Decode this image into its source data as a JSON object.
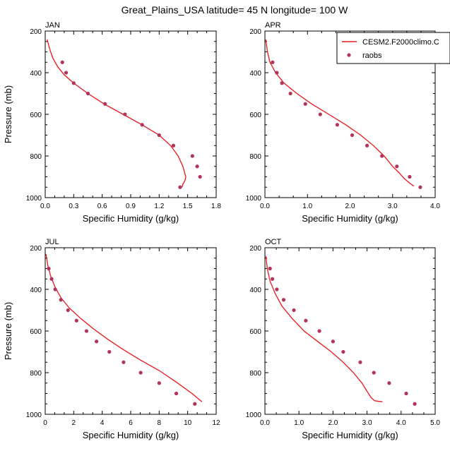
{
  "title": "Great_Plains_USA  latitude= 45 N longitude= 100 W",
  "colors": {
    "model_line": "#e8161b",
    "obs_marker": "#b2345b"
  },
  "legend": {
    "placement": "top-right of APR panel",
    "entries": [
      {
        "label": "CESM2.F2000climo.C",
        "kind": "line"
      },
      {
        "label": "raobs",
        "kind": "marker"
      }
    ]
  },
  "chart_data": [
    {
      "type": "line",
      "panel": "JAN",
      "title": "JAN",
      "xlabel": "Specific Humidity (g/kg)",
      "ylabel": "Pressure (mb)",
      "xlim": [
        0,
        1.8
      ],
      "ylim": [
        1000,
        200
      ],
      "y_reversed": true,
      "xticks": [
        0.0,
        0.3,
        0.6,
        0.9,
        1.2,
        1.5,
        1.8
      ],
      "xtick_labels": [
        "0.0",
        "0.3",
        "0.6",
        "0.9",
        "1.2",
        "1.5",
        "1.8"
      ],
      "yticks": [
        200,
        400,
        600,
        800,
        1000
      ],
      "ytick_labels": [
        "200",
        "400",
        "600",
        "800",
        "1000"
      ],
      "series": [
        {
          "kind": "line",
          "x": [
            0.02,
            0.05,
            0.08,
            0.13,
            0.2,
            0.3,
            0.45,
            0.62,
            0.82,
            1.02,
            1.2,
            1.32,
            1.4,
            1.45,
            1.48,
            1.47,
            1.45,
            1.44
          ],
          "y": [
            240,
            290,
            330,
            370,
            410,
            450,
            500,
            550,
            600,
            650,
            700,
            750,
            800,
            850,
            900,
            920,
            935,
            950
          ]
        },
        {
          "kind": "scatter",
          "x": [
            0.18,
            0.22,
            0.3,
            0.45,
            0.63,
            0.84,
            1.02,
            1.2,
            1.35,
            1.55,
            1.6,
            1.63,
            1.42
          ],
          "y": [
            350,
            400,
            450,
            500,
            550,
            600,
            650,
            700,
            750,
            800,
            850,
            900,
            950
          ]
        }
      ]
    },
    {
      "type": "line",
      "panel": "APR",
      "title": "APR",
      "xlabel": "Specific Humidity (g/kg)",
      "ylabel": "",
      "xlim": [
        0,
        4.0
      ],
      "ylim": [
        1000,
        200
      ],
      "y_reversed": true,
      "xticks": [
        0.0,
        1.0,
        2.0,
        3.0,
        4.0
      ],
      "xtick_labels": [
        "0.0",
        "1.0",
        "2.0",
        "3.0",
        "4.0"
      ],
      "yticks": [
        200,
        400,
        600,
        800,
        1000
      ],
      "ytick_labels": [
        "200",
        "400",
        "600",
        "800",
        "1000"
      ],
      "series": [
        {
          "name": "CESM2.F2000climo.C",
          "kind": "line",
          "x": [
            0.02,
            0.06,
            0.12,
            0.25,
            0.45,
            0.75,
            1.1,
            1.5,
            1.9,
            2.25,
            2.55,
            2.8,
            3.0,
            3.15,
            3.28,
            3.4,
            3.5
          ],
          "y": [
            240,
            300,
            350,
            400,
            450,
            500,
            550,
            600,
            650,
            700,
            750,
            800,
            850,
            880,
            910,
            930,
            945
          ]
        },
        {
          "name": "raobs",
          "kind": "scatter",
          "x": [
            0.18,
            0.28,
            0.4,
            0.6,
            0.95,
            1.3,
            1.7,
            2.05,
            2.4,
            2.75,
            3.1,
            3.4,
            3.65
          ],
          "y": [
            350,
            400,
            450,
            500,
            550,
            600,
            650,
            700,
            750,
            800,
            850,
            900,
            950
          ]
        }
      ]
    },
    {
      "type": "line",
      "panel": "JUL",
      "title": "JUL",
      "xlabel": "Specific Humidity (g/kg)",
      "ylabel": "Pressure (mb)",
      "xlim": [
        0,
        12
      ],
      "ylim": [
        1000,
        200
      ],
      "y_reversed": true,
      "xticks": [
        0,
        2,
        4,
        6,
        8,
        10,
        12
      ],
      "xtick_labels": [
        "0",
        "2",
        "4",
        "6",
        "8",
        "10",
        "12"
      ],
      "yticks": [
        200,
        400,
        600,
        800,
        1000
      ],
      "ytick_labels": [
        "200",
        "400",
        "600",
        "800",
        "1000"
      ],
      "series": [
        {
          "kind": "line",
          "x": [
            0.05,
            0.2,
            0.4,
            0.7,
            1.1,
            1.7,
            2.5,
            3.4,
            4.4,
            5.5,
            6.7,
            8.0,
            9.3,
            10.3,
            11.0
          ],
          "y": [
            230,
            290,
            340,
            390,
            440,
            490,
            540,
            590,
            640,
            690,
            740,
            790,
            850,
            900,
            940
          ]
        },
        {
          "kind": "scatter",
          "x": [
            0.25,
            0.45,
            0.7,
            1.1,
            1.6,
            2.2,
            2.9,
            3.6,
            4.5,
            5.5,
            6.7,
            8.0,
            9.2,
            10.5
          ],
          "y": [
            300,
            350,
            400,
            450,
            500,
            550,
            600,
            650,
            700,
            750,
            800,
            850,
            900,
            950
          ]
        }
      ]
    },
    {
      "type": "line",
      "panel": "OCT",
      "title": "OCT",
      "xlabel": "Specific Humidity (g/kg)",
      "ylabel": "",
      "xlim": [
        0,
        5.0
      ],
      "ylim": [
        1000,
        200
      ],
      "y_reversed": true,
      "xticks": [
        0.0,
        1.0,
        2.0,
        3.0,
        4.0,
        5.0
      ],
      "xtick_labels": [
        "0.0",
        "1.0",
        "2.0",
        "3.0",
        "4.0",
        "5.0"
      ],
      "yticks": [
        200,
        400,
        600,
        800,
        1000
      ],
      "ytick_labels": [
        "200",
        "400",
        "600",
        "800",
        "1000"
      ],
      "series": [
        {
          "kind": "line",
          "x": [
            0.03,
            0.07,
            0.15,
            0.3,
            0.5,
            0.8,
            1.15,
            1.55,
            1.95,
            2.3,
            2.6,
            2.85,
            3.0,
            3.12,
            3.22,
            3.45
          ],
          "y": [
            240,
            300,
            360,
            420,
            480,
            540,
            600,
            650,
            700,
            750,
            800,
            850,
            890,
            920,
            935,
            940
          ]
        },
        {
          "kind": "scatter",
          "x": [
            0.15,
            0.22,
            0.35,
            0.55,
            0.85,
            1.2,
            1.6,
            2.0,
            2.3,
            2.8,
            3.2,
            3.65,
            4.15,
            4.4
          ],
          "y": [
            300,
            350,
            400,
            450,
            500,
            550,
            600,
            650,
            700,
            750,
            800,
            850,
            900,
            950
          ]
        }
      ]
    }
  ]
}
